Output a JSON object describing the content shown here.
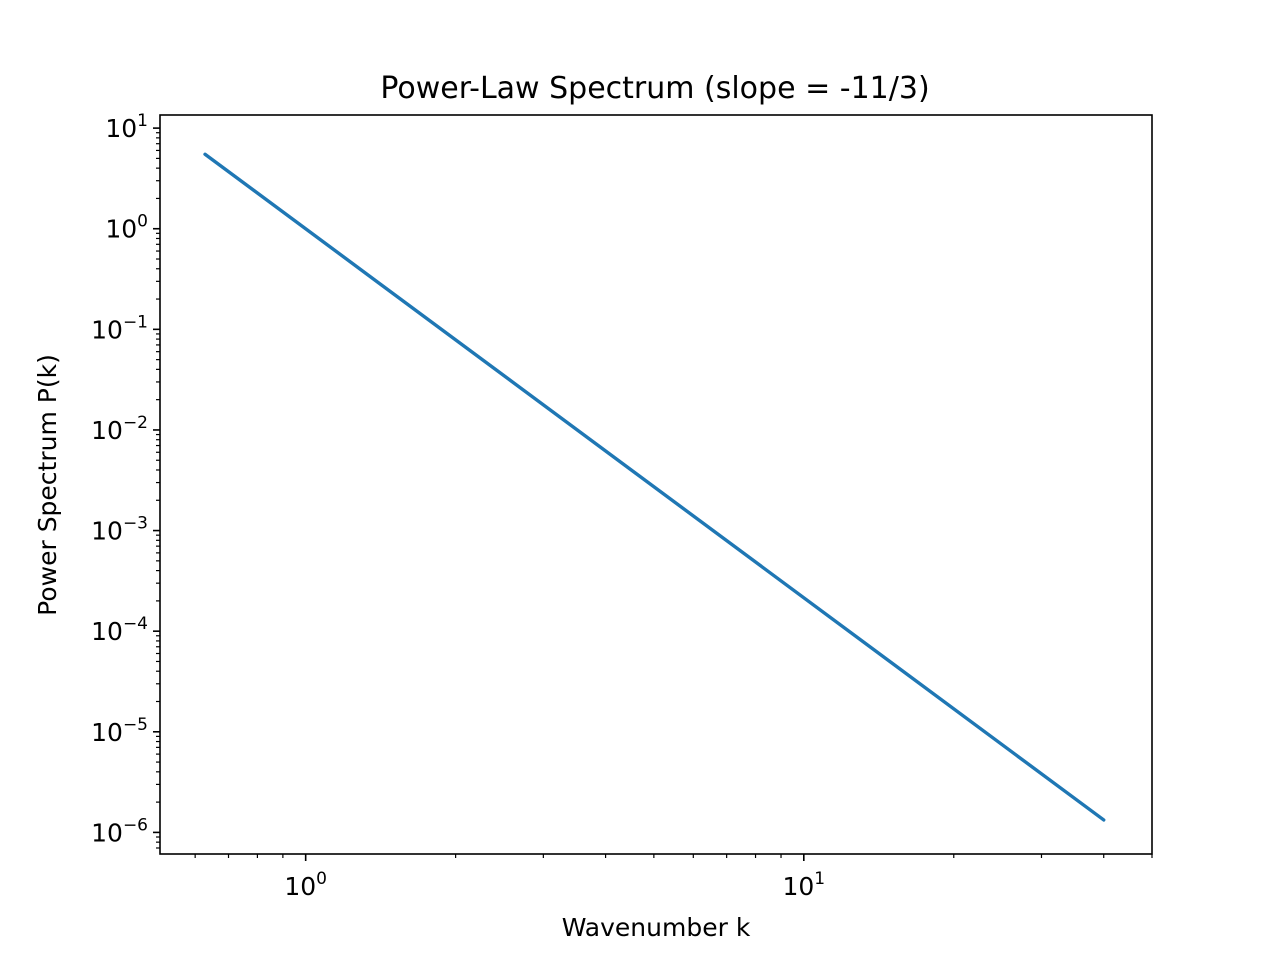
{
  "chart_data": {
    "type": "line",
    "title": "Power-Law Spectrum (slope = -11/3)",
    "xlabel": "Wavenumber k",
    "ylabel": "Power Spectrum P(k)",
    "xscale": "log",
    "yscale": "log",
    "xlim": [
      0.51,
      50
    ],
    "ylim": [
      6.1e-07,
      13.5
    ],
    "x_ticks": [
      {
        "base": "10",
        "exp": "0",
        "value": 1
      },
      {
        "base": "10",
        "exp": "1",
        "value": 10
      }
    ],
    "y_ticks": [
      {
        "base": "10",
        "exp": "1",
        "value": 10
      },
      {
        "base": "10",
        "exp": "0",
        "value": 1
      },
      {
        "base": "10",
        "exp": "−1",
        "value": 0.1
      },
      {
        "base": "10",
        "exp": "−2",
        "value": 0.01
      },
      {
        "base": "10",
        "exp": "−3",
        "value": 0.001
      },
      {
        "base": "10",
        "exp": "−4",
        "value": 0.0001
      },
      {
        "base": "10",
        "exp": "−5",
        "value": 1e-05
      },
      {
        "base": "10",
        "exp": "−6",
        "value": 1e-06
      }
    ],
    "series": [
      {
        "color": "#1f77b4",
        "x": [
          0.628,
          40
        ],
        "y": [
          5.5,
          1.33e-06
        ]
      }
    ],
    "grid": false,
    "legend": "none"
  }
}
